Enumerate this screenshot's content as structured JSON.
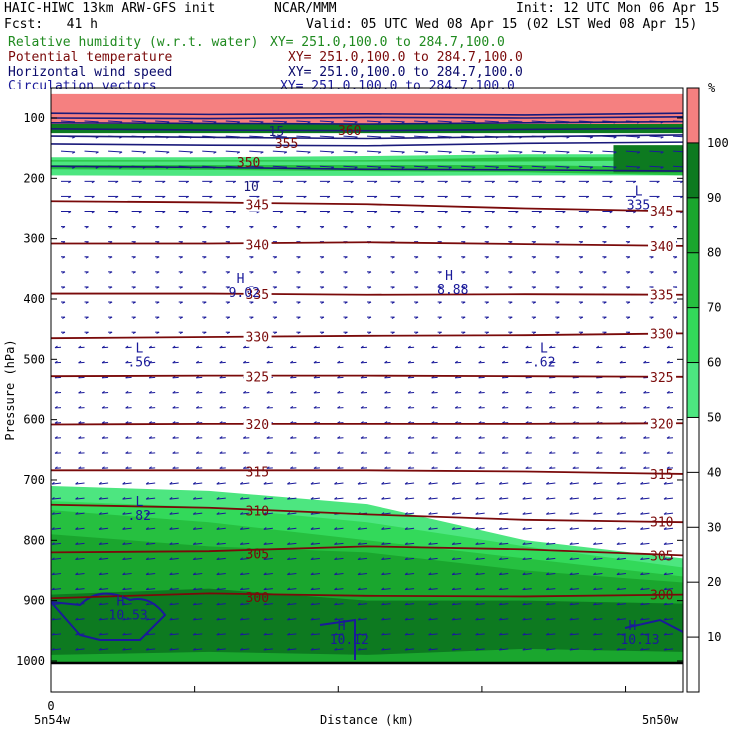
{
  "header": {
    "title": "HAIC-HIWC 13km ARW-GFS init",
    "center": "NCAR/MMM",
    "init": "Init: 12 UTC Mon 06 Apr 15",
    "fcst": "Fcst:   41 h",
    "valid": "Valid: 05 UTC Wed 08 Apr 15 (02 LST Wed 08 Apr 15)"
  },
  "fields": [
    {
      "name": "Relative humidity (w.r.t. water)",
      "xy": "XY= 251.0,100.0 to 284.7,100.0",
      "color": "#1f8a1f"
    },
    {
      "name": "Potential temperature",
      "xy": "XY= 251.0,100.0 to 284.7,100.0",
      "color": "#7a0a0a"
    },
    {
      "name": "Horizontal wind speed",
      "xy": "XY= 251.0,100.0 to 284.7,100.0",
      "color": "#0a0a6a"
    },
    {
      "name": "Circulation vectors",
      "xy": "XY= 251.0,100.0 to 284.7,100.0",
      "color": "#1a1a9a"
    }
  ],
  "chart_data": {
    "type": "heatmap",
    "xlabel": "Distance (km)",
    "ylabel": "Pressure (hPa)",
    "x_start_label": "0",
    "x_left_label": "5n54w",
    "x_right_label": "5n50w",
    "y_ticks": [
      100,
      200,
      300,
      400,
      500,
      600,
      700,
      800,
      900,
      1000
    ],
    "colorbar": {
      "unit": "%",
      "ticks": [
        10,
        20,
        30,
        40,
        50,
        60,
        70,
        80,
        90,
        100
      ],
      "bins": [
        {
          "from": 50,
          "to": 60,
          "color": "#4de680"
        },
        {
          "from": 60,
          "to": 70,
          "color": "#33d95a"
        },
        {
          "from": 70,
          "to": 80,
          "color": "#26c040"
        },
        {
          "from": 80,
          "to": 90,
          "color": "#1aa62e"
        },
        {
          "from": 90,
          "to": 100,
          "color": "#0d7a20"
        },
        {
          "from": 100,
          "to": 110,
          "color": "#f58080"
        }
      ]
    },
    "theta_contours": [
      {
        "value": "345",
        "p": [
          238,
          240,
          243,
          250,
          255
        ]
      },
      {
        "value": "340",
        "p": [
          308,
          308,
          306,
          309,
          312
        ]
      },
      {
        "value": "335",
        "p": [
          391,
          391,
          393,
          392,
          393
        ]
      },
      {
        "value": "330",
        "p": [
          465,
          463,
          461,
          460,
          457
        ]
      },
      {
        "value": "325",
        "p": [
          528,
          527,
          527,
          528,
          529
        ]
      },
      {
        "value": "320",
        "p": [
          608,
          607,
          607,
          607,
          606
        ]
      },
      {
        "value": "315",
        "p": [
          684,
          684,
          684,
          686,
          690
        ]
      },
      {
        "value": "310",
        "p": [
          741,
          746,
          757,
          766,
          770
        ]
      },
      {
        "value": "305",
        "p": [
          820,
          818,
          810,
          815,
          825
        ]
      },
      {
        "value": "300",
        "p": [
          896,
          888,
          892,
          893,
          890
        ]
      }
    ],
    "annotations": [
      {
        "type": "H",
        "value": "9.02",
        "x": 0.3,
        "p": 390
      },
      {
        "type": "H",
        "value": "8.88",
        "x": 0.63,
        "p": 385
      },
      {
        "type": "L",
        "value": ".56",
        "x": 0.14,
        "p": 505
      },
      {
        "type": "L",
        "value": ".62",
        "x": 0.78,
        "p": 505
      },
      {
        "type": "L",
        "value": ".82",
        "x": 0.14,
        "p": 760
      },
      {
        "type": "H",
        "value": "10.53",
        "x": 0.11,
        "p": 925
      },
      {
        "type": "H",
        "value": "10.12",
        "x": 0.46,
        "p": 965
      },
      {
        "type": "H",
        "value": "10.13",
        "x": 0.92,
        "p": 965
      },
      {
        "type": "L",
        "value": "335",
        "x": 0.93,
        "p": 245
      }
    ],
    "upper_labels": [
      "360",
      "355",
      "350",
      "15",
      "10"
    ]
  }
}
